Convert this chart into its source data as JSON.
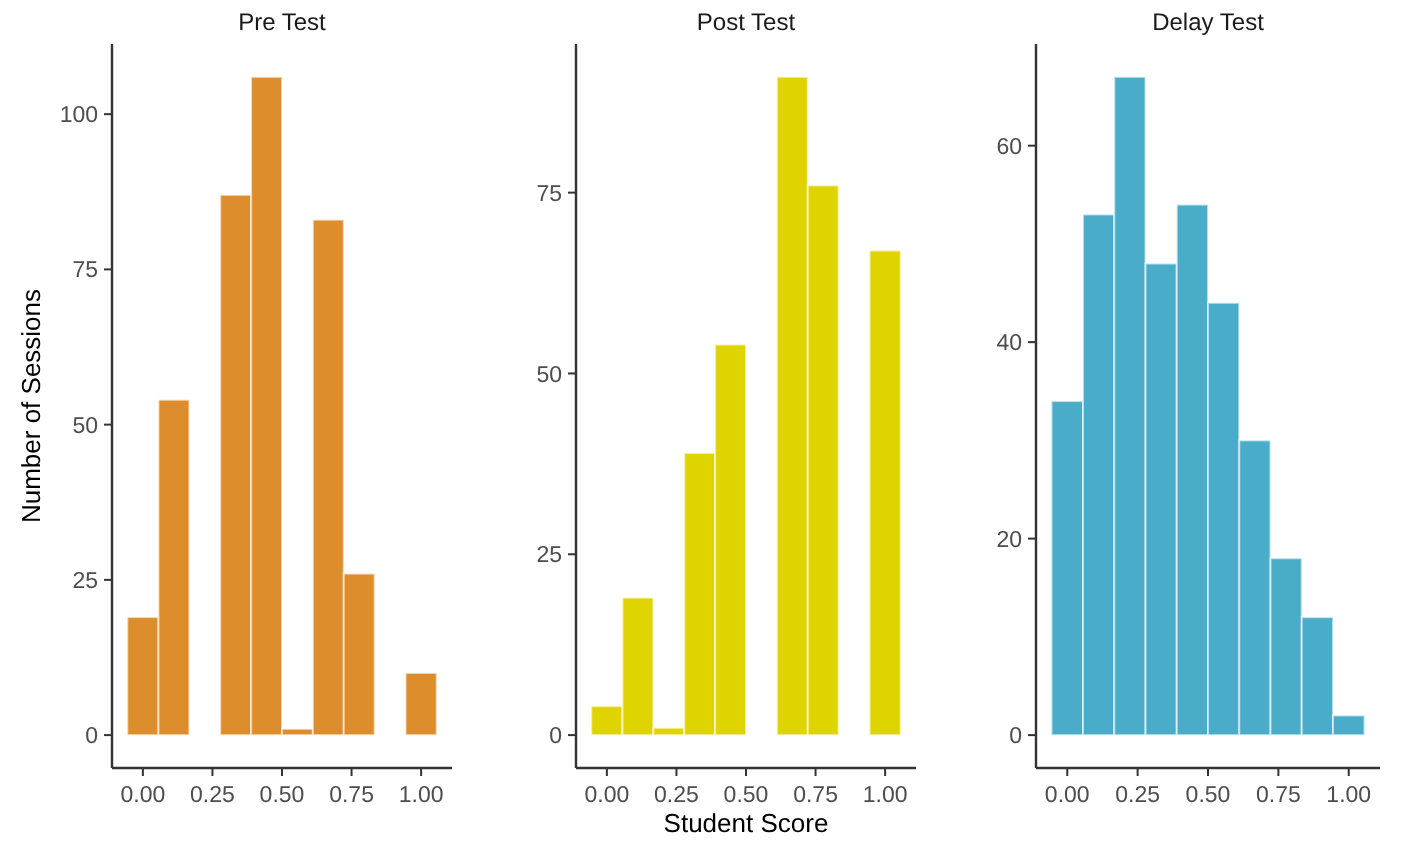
{
  "chart_data": [
    {
      "type": "histogram",
      "title": "Pre Test",
      "ylabel": "Number of Sessions",
      "bins": [
        -0.056,
        0.056,
        0.167,
        0.278,
        0.389,
        0.5,
        0.611,
        0.722,
        0.833,
        0.944,
        1.056
      ],
      "values": [
        19,
        54,
        0,
        87,
        106,
        1,
        83,
        26,
        0,
        10
      ],
      "color": "#de8d2d",
      "xlim": [
        -0.111,
        1.111
      ],
      "xticks": [
        {
          "value": 0,
          "label": "0.00"
        },
        {
          "value": 0.25,
          "label": "0.25"
        },
        {
          "value": 0.5,
          "label": "0.50"
        },
        {
          "value": 0.75,
          "label": "0.75"
        },
        {
          "value": 1,
          "label": "1.00"
        }
      ],
      "ylim": [
        -5.3,
        111.3
      ],
      "yticks": [
        0,
        25,
        50,
        75,
        100
      ],
      "grid": false
    },
    {
      "type": "histogram",
      "title": "Post Test",
      "xlabel": "Student Score",
      "bins": [
        -0.056,
        0.056,
        0.167,
        0.278,
        0.389,
        0.5,
        0.611,
        0.722,
        0.833,
        0.944,
        1.056
      ],
      "values": [
        4,
        19,
        1,
        39,
        54,
        0,
        91,
        76,
        0,
        67
      ],
      "color": "#e0d400",
      "xlim": [
        -0.111,
        1.111
      ],
      "xticks": [
        {
          "value": 0,
          "label": "0.00"
        },
        {
          "value": 0.25,
          "label": "0.25"
        },
        {
          "value": 0.5,
          "label": "0.50"
        },
        {
          "value": 0.75,
          "label": "0.75"
        },
        {
          "value": 1,
          "label": "1.00"
        }
      ],
      "ylim": [
        -4.55,
        95.55
      ],
      "yticks": [
        0,
        25,
        50,
        75
      ],
      "grid": false
    },
    {
      "type": "histogram",
      "title": "Delay Test",
      "bins": [
        -0.056,
        0.056,
        0.167,
        0.278,
        0.389,
        0.5,
        0.611,
        0.722,
        0.833,
        0.944,
        1.056
      ],
      "values": [
        34,
        53,
        67,
        48,
        54,
        44,
        30,
        18,
        12,
        2
      ],
      "color": "#49acc9",
      "xlim": [
        -0.111,
        1.111
      ],
      "xticks": [
        {
          "value": 0,
          "label": "0.00"
        },
        {
          "value": 0.25,
          "label": "0.25"
        },
        {
          "value": 0.5,
          "label": "0.50"
        },
        {
          "value": 0.75,
          "label": "0.75"
        },
        {
          "value": 1,
          "label": "1.00"
        }
      ],
      "ylim": [
        -3.35,
        70.35
      ],
      "yticks": [
        0,
        20,
        40,
        60
      ],
      "grid": false
    }
  ]
}
